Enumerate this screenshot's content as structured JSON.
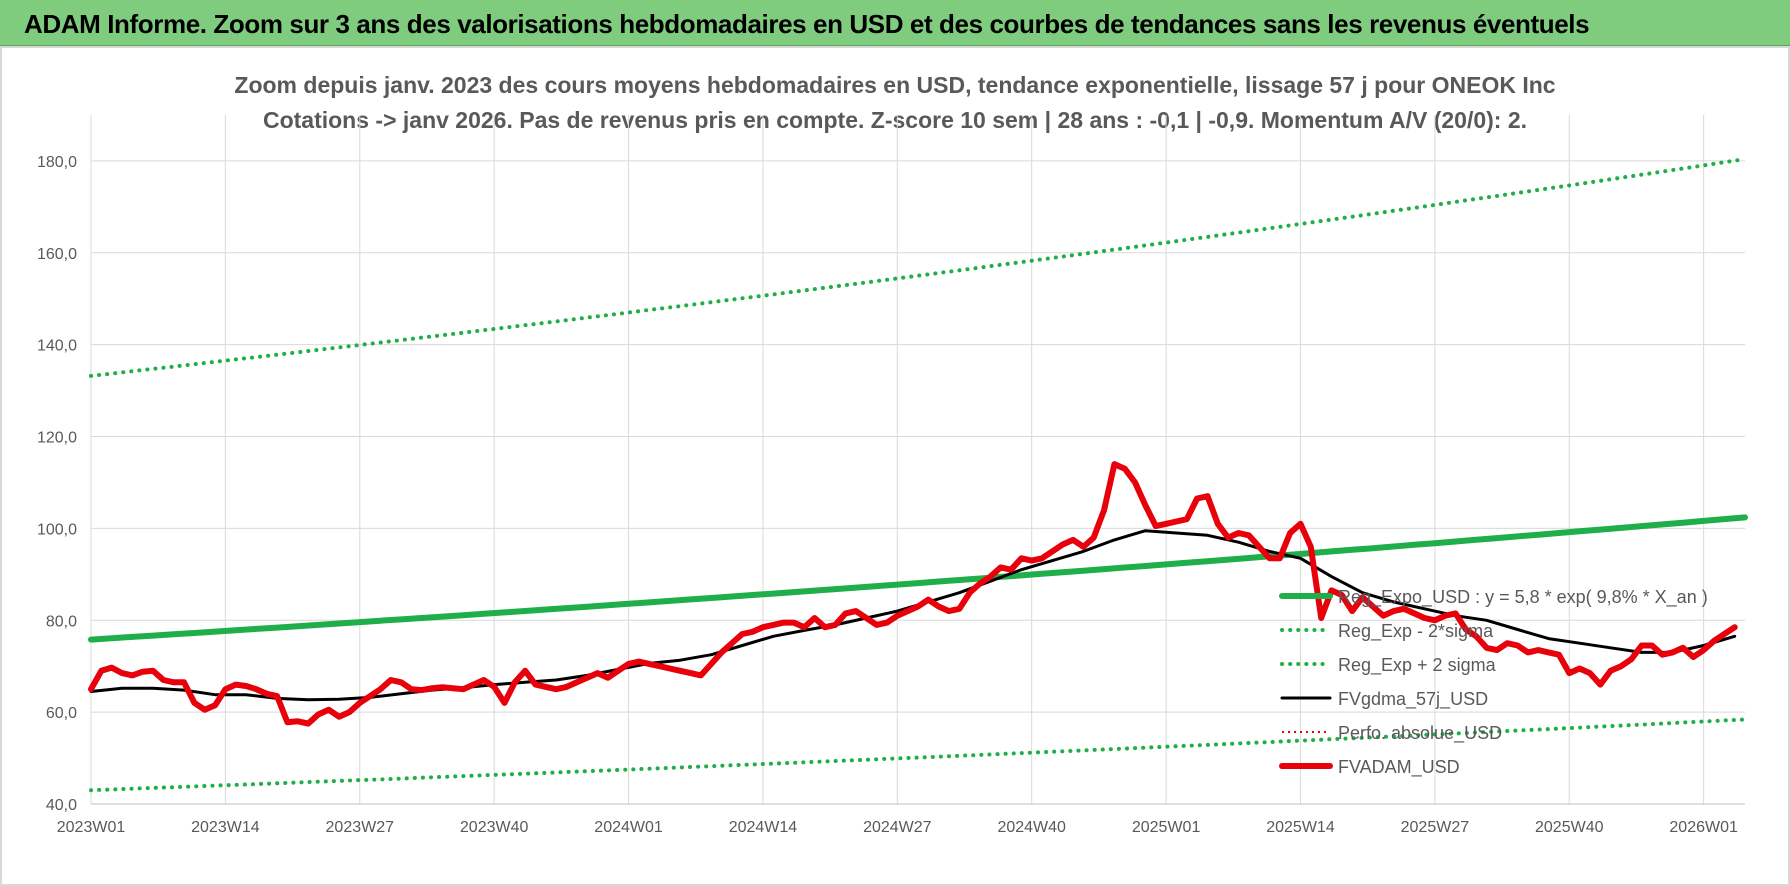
{
  "banner": {
    "title": "ADAM Informe. Zoom sur 3 ans des valorisations hebdomadaires en USD et des courbes de tendances sans les revenus éventuels"
  },
  "chart_data": {
    "type": "line",
    "title_line1": "Zoom depuis janv. 2023 des cours moyens hebdomadaires en USD, tendance exponentielle, lissage 57 j pour ONEOK Inc",
    "title_line2": "Cotations -> janv 2026. Pas de revenus pris en compte. Z-score 10 sem | 28 ans : -0,1 | -0,9. Momentum A/V (20/0): 2.",
    "ylim": [
      40,
      190
    ],
    "yticks": [
      "40,0",
      "60,0",
      "80,0",
      "100,0",
      "120,0",
      "140,0",
      "160,0",
      "180,0"
    ],
    "ytick_values": [
      40,
      60,
      80,
      100,
      120,
      140,
      160,
      180
    ],
    "xlim": [
      0,
      160
    ],
    "xticks": [
      "2023W01",
      "2023W14",
      "2023W27",
      "2023W40",
      "2024W01",
      "2024W14",
      "2024W27",
      "2024W40",
      "2025W01",
      "2025W14",
      "2025W27",
      "2025W40",
      "2026W01"
    ],
    "xtick_values": [
      0,
      13,
      26,
      39,
      52,
      65,
      78,
      91,
      104,
      117,
      130,
      143,
      156
    ],
    "grid": true,
    "legend_position": "right",
    "series": [
      {
        "name": "Reg_Expo_USD : y = 5,8 * exp( 9,8% * X_an )",
        "color": "#1fae4a",
        "style": "solid-thick",
        "x": [
          0,
          160
        ],
        "y": [
          75.8,
          102.4
        ],
        "curve": "exponential"
      },
      {
        "name": "Reg_Exp - 2*sigma",
        "color": "#1fae4a",
        "style": "dotted",
        "x": [
          0,
          160
        ],
        "y": [
          43.0,
          58.4
        ],
        "curve": "exponential"
      },
      {
        "name": "Reg_Exp + 2 sigma",
        "color": "#1fae4a",
        "style": "dotted",
        "x": [
          0,
          160
        ],
        "y": [
          133.2,
          180.4
        ],
        "curve": "exponential"
      },
      {
        "name": "FVgdma_57j_USD",
        "color": "#000000",
        "style": "solid",
        "x": [
          0,
          3,
          6,
          9,
          12,
          15,
          18,
          21,
          24,
          27,
          30,
          33,
          36,
          39,
          42,
          45,
          48,
          51,
          54,
          57,
          60,
          63,
          66,
          69,
          72,
          75,
          78,
          81,
          84,
          87,
          90,
          93,
          96,
          99,
          102,
          105,
          108,
          111,
          114,
          117,
          120,
          123,
          126,
          129,
          132,
          135,
          138,
          141,
          144,
          147,
          150,
          153,
          156,
          159
        ],
        "y": [
          64.5,
          65.2,
          65.2,
          64.8,
          63.8,
          63.8,
          63.0,
          62.7,
          62.8,
          63.2,
          64.0,
          64.8,
          65.3,
          66.0,
          66.5,
          67.0,
          68.0,
          69.3,
          70.6,
          71.3,
          72.5,
          74.5,
          76.5,
          77.8,
          79.0,
          80.5,
          82.0,
          84.0,
          86.0,
          88.5,
          91.0,
          93.0,
          95.0,
          97.5,
          99.5,
          99.0,
          98.5,
          97.0,
          95.0,
          93.5,
          89.5,
          86.0,
          84.0,
          82.5,
          81.0,
          80.0,
          78.0,
          76.0,
          75.0,
          74.0,
          73.0,
          73.0,
          74.5,
          76.5
        ]
      },
      {
        "name": "Perfo. absolue_USD",
        "color": "#e8000b",
        "style": "dotted-thin",
        "x": [],
        "y": []
      },
      {
        "name": "FVADAM_USD",
        "color": "#e8000b",
        "style": "solid-thick",
        "x": [
          0,
          1,
          2,
          3,
          4,
          5,
          6,
          7,
          8,
          9,
          10,
          11,
          12,
          13,
          14,
          15,
          16,
          17,
          18,
          19,
          20,
          21,
          22,
          23,
          24,
          25,
          26,
          27,
          28,
          29,
          30,
          31,
          32,
          33,
          34,
          35,
          36,
          37,
          38,
          39,
          40,
          41,
          42,
          43,
          44,
          45,
          46,
          47,
          48,
          49,
          50,
          51,
          52,
          53,
          54,
          55,
          56,
          57,
          58,
          59,
          60,
          61,
          62,
          63,
          64,
          65,
          66,
          67,
          68,
          69,
          70,
          71,
          72,
          73,
          74,
          75,
          76,
          77,
          78,
          79,
          80,
          81,
          82,
          83,
          84,
          85,
          86,
          87,
          88,
          89,
          90,
          91,
          92,
          93,
          94,
          95,
          96,
          97,
          98,
          99,
          100,
          101,
          102,
          103,
          104,
          105,
          106,
          107,
          108,
          109,
          110,
          111,
          112,
          113,
          114,
          115,
          116,
          117,
          118,
          119,
          120,
          121,
          122,
          123,
          124,
          125,
          126,
          127,
          128,
          129,
          130,
          131,
          132,
          133,
          134,
          135,
          136,
          137,
          138,
          139,
          140,
          141,
          142,
          143,
          144,
          145,
          146,
          147,
          148,
          149,
          150,
          151,
          152,
          153,
          154,
          155,
          156,
          157,
          158,
          159
        ],
        "y": [
          65.0,
          69.0,
          69.7,
          68.5,
          68.0,
          68.8,
          69.0,
          67.0,
          66.5,
          66.5,
          62.0,
          60.5,
          61.5,
          65.0,
          66.0,
          65.7,
          65.0,
          64.0,
          63.5,
          57.8,
          58.0,
          57.5,
          59.5,
          60.5,
          59.0,
          60.0,
          62.0,
          63.5,
          65.0,
          67.0,
          66.5,
          65.0,
          64.8,
          65.2,
          65.4,
          65.2,
          65.0,
          66.0,
          67.0,
          65.5,
          62.0,
          66.5,
          69.0,
          66.0,
          65.5,
          65.0,
          65.5,
          66.5,
          67.5,
          68.5,
          67.5,
          69.0,
          70.5,
          71.0,
          70.5,
          70.0,
          69.5,
          69.0,
          68.5,
          68.0,
          70.5,
          73.0,
          75.0,
          77.0,
          77.5,
          78.5,
          79.0,
          79.5,
          79.5,
          78.5,
          80.5,
          78.5,
          79.0,
          81.5,
          82.0,
          80.5,
          79.0,
          79.5,
          81.0,
          82.0,
          83.0,
          84.5,
          83.0,
          82.0,
          82.5,
          86.0,
          88.0,
          89.5,
          91.5,
          91.0,
          93.5,
          93.0,
          93.5,
          95.0,
          96.5,
          97.5,
          96.0,
          98.0,
          104.0,
          114.0,
          113.0,
          110.0,
          105.0,
          100.5,
          101.0,
          101.5,
          102.0,
          106.5,
          107.0,
          101.0,
          98.0,
          99.0,
          98.5,
          96.0,
          93.5,
          93.5,
          99.0,
          101.0,
          96.0,
          80.5,
          86.5,
          85.5,
          82.0,
          85.0,
          83.0,
          81.0,
          82.0,
          82.5,
          81.5,
          80.5,
          80.0,
          81.0,
          81.5,
          78.0,
          76.5,
          74.0,
          73.5,
          75.0,
          74.5,
          73.0,
          73.5,
          73.0,
          72.5,
          68.5,
          69.5,
          68.5,
          66.0,
          69.0,
          70.0,
          71.5,
          74.5,
          74.5,
          72.5,
          73.0,
          74.0,
          72.0,
          73.5,
          75.5,
          77.0,
          78.5
        ]
      }
    ]
  }
}
